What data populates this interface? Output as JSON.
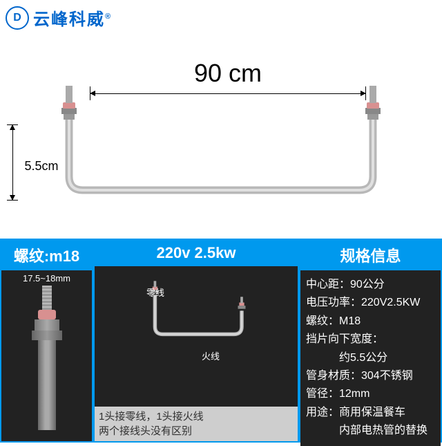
{
  "brand": {
    "logo_letter": "D",
    "name": "云峰科威",
    "reg": "®"
  },
  "main_dim": {
    "width": "90 cm",
    "height": "5.5cm"
  },
  "tube_color": "#bfbfbf",
  "panels": {
    "thread": {
      "header": "螺纹:m18",
      "measure": "17.5~18mm"
    },
    "voltage": {
      "header": "220v  2.5kw",
      "neutral_label": "零线",
      "live_label": "火线",
      "note_line1": "1头接零线，1头接火线",
      "note_line2": "两个接线头没有区别"
    },
    "spec": {
      "header": "规格信息",
      "rows": [
        {
          "k": "中心距",
          "v": "90公分"
        },
        {
          "k": "电压功率",
          "v": "220V2.5KW"
        },
        {
          "k": "螺纹",
          "v": "M18"
        },
        {
          "k": "挡片向下宽度",
          "v": ""
        },
        {
          "k": "",
          "v": "约5.5公分"
        },
        {
          "k": "管身材质",
          "v": "304不锈钢"
        },
        {
          "k": "管径",
          "v": "12mm"
        },
        {
          "k": "用途",
          "v": "商用保温餐车"
        },
        {
          "k": "",
          "v": "内部电热管的替换"
        }
      ]
    }
  },
  "layout": {
    "thread_w": 135,
    "volt_w": 298,
    "spec_w": 207
  }
}
